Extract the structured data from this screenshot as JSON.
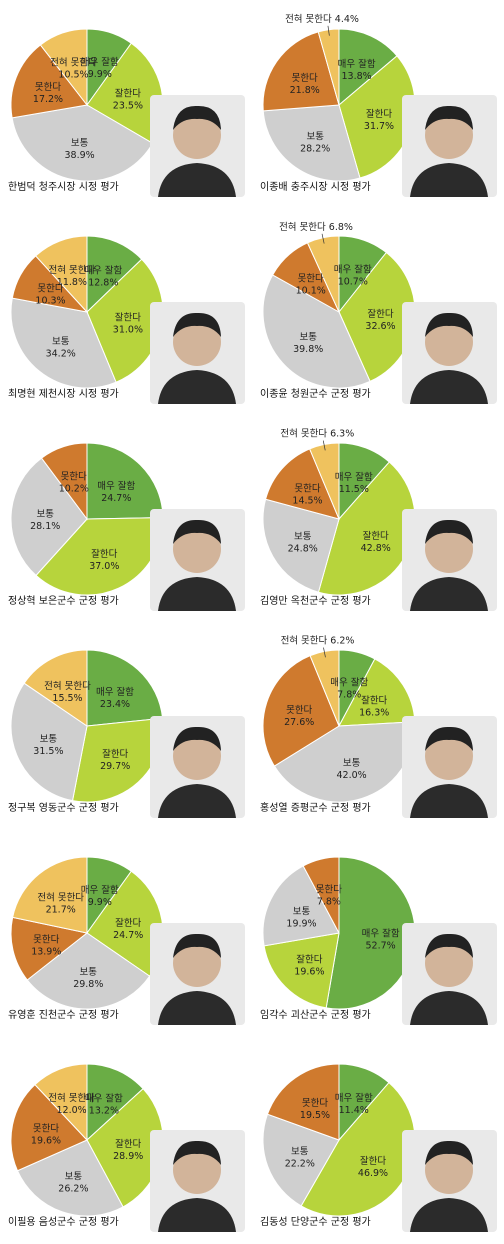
{
  "colors": {
    "매우 잘함": "#6aad45",
    "잘한다": "#b7d43c",
    "보통": "#cfcfcf",
    "못한다": "#cf7a2e",
    "전혀 못한다": "#efc25e"
  },
  "chart_data": [
    {
      "type": "pie",
      "title": "한범덕 청주시장 시정 평가",
      "slices": [
        {
          "label": "매우 잘함",
          "value": 9.9,
          "text": "9.9%"
        },
        {
          "label": "잘한다",
          "value": 23.5,
          "text": "23.5%"
        },
        {
          "label": "보통",
          "value": 38.9,
          "text": "38.9%"
        },
        {
          "label": "못한다",
          "value": 17.2,
          "text": "17.2%"
        },
        {
          "label": "전혀 못한다",
          "value": 10.5,
          "text": "10.5%"
        }
      ]
    },
    {
      "type": "pie",
      "title": "이종배 충주시장 시정 평가",
      "slices": [
        {
          "label": "매우 잘함",
          "value": 13.8,
          "text": "13.8%"
        },
        {
          "label": "잘한다",
          "value": 31.7,
          "text": "31.7%"
        },
        {
          "label": "보통",
          "value": 28.2,
          "text": "28.2%"
        },
        {
          "label": "못한다",
          "value": 21.8,
          "text": "21.8%"
        },
        {
          "label": "전혀 못한다",
          "value": 4.4,
          "text": "4.4%"
        }
      ]
    },
    {
      "type": "pie",
      "title": "최명현 제천시장 시정 평가",
      "slices": [
        {
          "label": "매우 잘함",
          "value": 12.8,
          "text": "12.8%"
        },
        {
          "label": "잘한다",
          "value": 31.0,
          "text": "31.0%"
        },
        {
          "label": "보통",
          "value": 34.2,
          "text": "34.2%"
        },
        {
          "label": "못한다",
          "value": 10.3,
          "text": "10.3%"
        },
        {
          "label": "전혀 못한다",
          "value": 11.8,
          "text": "11.8%"
        }
      ]
    },
    {
      "type": "pie",
      "title": "이종윤 청원군수 군정 평가",
      "slices": [
        {
          "label": "매우 잘함",
          "value": 10.7,
          "text": "10.7%"
        },
        {
          "label": "잘한다",
          "value": 32.6,
          "text": "32.6%"
        },
        {
          "label": "보통",
          "value": 39.8,
          "text": "39.8%"
        },
        {
          "label": "못한다",
          "value": 10.1,
          "text": "10.1%"
        },
        {
          "label": "전혀 못한다",
          "value": 6.8,
          "text": "6.8%"
        }
      ]
    },
    {
      "type": "pie",
      "title": "정상혁 보은군수 군정 평가",
      "slices": [
        {
          "label": "매우 잘함",
          "value": 24.7,
          "text": "24.7%"
        },
        {
          "label": "잘한다",
          "value": 37.0,
          "text": "37.0%"
        },
        {
          "label": "보통",
          "value": 28.1,
          "text": "28.1%"
        },
        {
          "label": "못한다",
          "value": 10.2,
          "text": "10.2%"
        }
      ]
    },
    {
      "type": "pie",
      "title": "김영만 옥천군수 군정 평가",
      "slices": [
        {
          "label": "매우 잘함",
          "value": 11.5,
          "text": "11.5%"
        },
        {
          "label": "잘한다",
          "value": 42.8,
          "text": "42.8%"
        },
        {
          "label": "보통",
          "value": 24.8,
          "text": "24.8%"
        },
        {
          "label": "못한다",
          "value": 14.5,
          "text": "14.5%"
        },
        {
          "label": "전혀 못한다",
          "value": 6.3,
          "text": "6.3%"
        }
      ]
    },
    {
      "type": "pie",
      "title": "정구복 영동군수 군정 평가",
      "slices": [
        {
          "label": "매우 잘함",
          "value": 23.4,
          "text": "23.4%"
        },
        {
          "label": "잘한다",
          "value": 29.7,
          "text": "29.7%"
        },
        {
          "label": "보통",
          "value": 31.5,
          "text": "31.5%"
        },
        {
          "label": "전혀 못한다",
          "value": 15.5,
          "text": "15.5%"
        }
      ]
    },
    {
      "type": "pie",
      "title": "홍성열 증평군수 군정 평가",
      "slices": [
        {
          "label": "매우 잘함",
          "value": 7.8,
          "text": "7.8%"
        },
        {
          "label": "잘한다",
          "value": 16.3,
          "text": "16.3%"
        },
        {
          "label": "보통",
          "value": 42.0,
          "text": "42.0%"
        },
        {
          "label": "못한다",
          "value": 27.6,
          "text": "27.6%"
        },
        {
          "label": "전혀 못한다",
          "value": 6.2,
          "text": "6.2%"
        }
      ]
    },
    {
      "type": "pie",
      "title": "유영훈 진천군수 군정 평가",
      "slices": [
        {
          "label": "매우 잘함",
          "value": 9.9,
          "text": "9.9%"
        },
        {
          "label": "잘한다",
          "value": 24.7,
          "text": "24.7%"
        },
        {
          "label": "보통",
          "value": 29.8,
          "text": "29.8%"
        },
        {
          "label": "못한다",
          "value": 13.9,
          "text": "13.9%"
        },
        {
          "label": "전혀 못한다",
          "value": 21.7,
          "text": "21.7%"
        }
      ]
    },
    {
      "type": "pie",
      "title": "임각수 괴산군수 군정 평가",
      "slices": [
        {
          "label": "매우 잘함",
          "value": 52.7,
          "text": "52.7%"
        },
        {
          "label": "잘한다",
          "value": 19.6,
          "text": "19.6%"
        },
        {
          "label": "보통",
          "value": 19.9,
          "text": "19.9%"
        },
        {
          "label": "못한다",
          "value": 7.8,
          "text": "7.8%"
        }
      ]
    },
    {
      "type": "pie",
      "title": "이필용 음성군수 군정 평가",
      "slices": [
        {
          "label": "매우 잘함",
          "value": 13.2,
          "text": "13.2%"
        },
        {
          "label": "잘한다",
          "value": 28.9,
          "text": "28.9%"
        },
        {
          "label": "보통",
          "value": 26.2,
          "text": "26.2%"
        },
        {
          "label": "못한다",
          "value": 19.6,
          "text": "19.6%"
        },
        {
          "label": "전혀 못한다",
          "value": 12.0,
          "text": "12.0%"
        }
      ]
    },
    {
      "type": "pie",
      "title": "김동성 단양군수 군정 평가",
      "slices": [
        {
          "label": "매우 잘함",
          "value": 11.4,
          "text": "11.4%"
        },
        {
          "label": "잘한다",
          "value": 46.9,
          "text": "46.9%"
        },
        {
          "label": "보통",
          "value": 22.2,
          "text": "22.2%"
        },
        {
          "label": "못한다",
          "value": 19.5,
          "text": "19.5%"
        }
      ]
    }
  ]
}
